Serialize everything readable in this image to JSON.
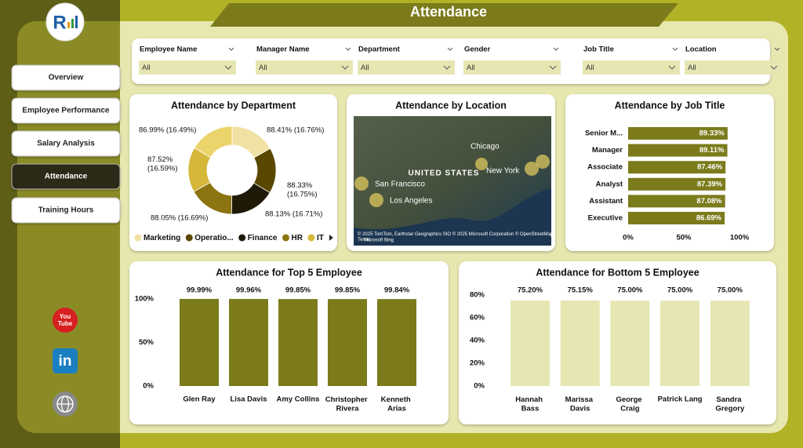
{
  "header": {
    "title": "Attendance"
  },
  "nav": [
    "Overview",
    "Employee Performance",
    "Salary Analysis",
    "Attendance",
    "Training Hours"
  ],
  "selected_nav": 3,
  "filters": [
    {
      "label": "Employee Name",
      "value": "All"
    },
    {
      "label": "Manager Name",
      "value": "All"
    },
    {
      "label": "Department",
      "value": "All"
    },
    {
      "label": "Gender",
      "value": "All"
    },
    {
      "label": "Job Title",
      "value": "All"
    },
    {
      "label": "Location",
      "value": "All"
    }
  ],
  "chart_data": [
    {
      "type": "donut",
      "title": "Attendance by Department",
      "categories": [
        "Marketing",
        "Operatio...",
        "Finance",
        "HR",
        "IT",
        null
      ],
      "values": [
        88.41,
        88.33,
        88.13,
        88.05,
        87.52,
        86.99
      ],
      "value_labels": [
        "88.41% (16.76%)",
        "88.33% (16.75%)",
        "88.13% (16.71%)",
        "88.05% (16.69%)",
        "87.52% (16.59%)",
        "86.99% (16.49%)"
      ],
      "colors": [
        "#f1e1a4",
        "#5a4700",
        "#1f1a08",
        "#8c7410",
        "#d5b73a",
        "#ecd46c"
      ]
    },
    {
      "type": "map",
      "title": "Attendance by Location",
      "places": [
        "San Francisco",
        "Los Angeles",
        "Chicago",
        "New York"
      ],
      "country": "UNITED STATES",
      "attribution": "© 2025 TomTom, Earthstar Geographics SIO © 2025 Microsoft Corporation © OpenStreetMap Terms",
      "brand": "Microsoft Bing"
    },
    {
      "type": "hbar",
      "title": "Attendance by Job Title",
      "categories": [
        "Senior M...",
        "Manager",
        "Associate",
        "Analyst",
        "Assistant",
        "Executive"
      ],
      "values": [
        89.33,
        89.11,
        87.46,
        87.39,
        87.08,
        86.69
      ],
      "value_labels": [
        "89.33%",
        "89.11%",
        "87.46%",
        "87.39%",
        "87.08%",
        "86.69%"
      ],
      "color": "#7b7b1c",
      "xlim": [
        0,
        100
      ],
      "xticks": [
        {
          "value": 0,
          "label": "0%"
        },
        {
          "value": 50,
          "label": "50%"
        },
        {
          "value": 100,
          "label": "100%"
        }
      ]
    },
    {
      "type": "bar",
      "title": "Attendance for Top 5 Employee",
      "categories": [
        "Glen Ray",
        "Lisa Davis",
        "Amy Collins",
        "Christopher Rivera",
        "Kenneth Arias"
      ],
      "values": [
        99.99,
        99.96,
        99.85,
        99.85,
        99.84
      ],
      "value_labels": [
        "99.99%",
        "99.96%",
        "99.85%",
        "99.85%",
        "99.84%"
      ],
      "color": "#7b7b1c",
      "ylim": [
        0,
        100
      ],
      "yticks": [
        {
          "value": 0,
          "label": "0%"
        },
        {
          "value": 50,
          "label": "50%"
        },
        {
          "value": 100,
          "label": "100%"
        }
      ]
    },
    {
      "type": "bar",
      "title": "Attendance for Bottom 5 Employee",
      "categories": [
        "Hannah Bass",
        "Marissa Davis",
        "George Craig",
        "Patrick Lang",
        "Sandra Gregory"
      ],
      "values": [
        75.2,
        75.15,
        75.0,
        75.0,
        75.0
      ],
      "value_labels": [
        "75.20%",
        "75.15%",
        "75.00%",
        "75.00%",
        "75.00%"
      ],
      "color": "#e6e6b3",
      "ylim": [
        0,
        80
      ],
      "yticks": [
        {
          "value": 0,
          "label": "0%"
        },
        {
          "value": 20,
          "label": "20%"
        },
        {
          "value": 40,
          "label": "40%"
        },
        {
          "value": 60,
          "label": "60%"
        },
        {
          "value": 80,
          "label": "80%"
        }
      ]
    }
  ]
}
